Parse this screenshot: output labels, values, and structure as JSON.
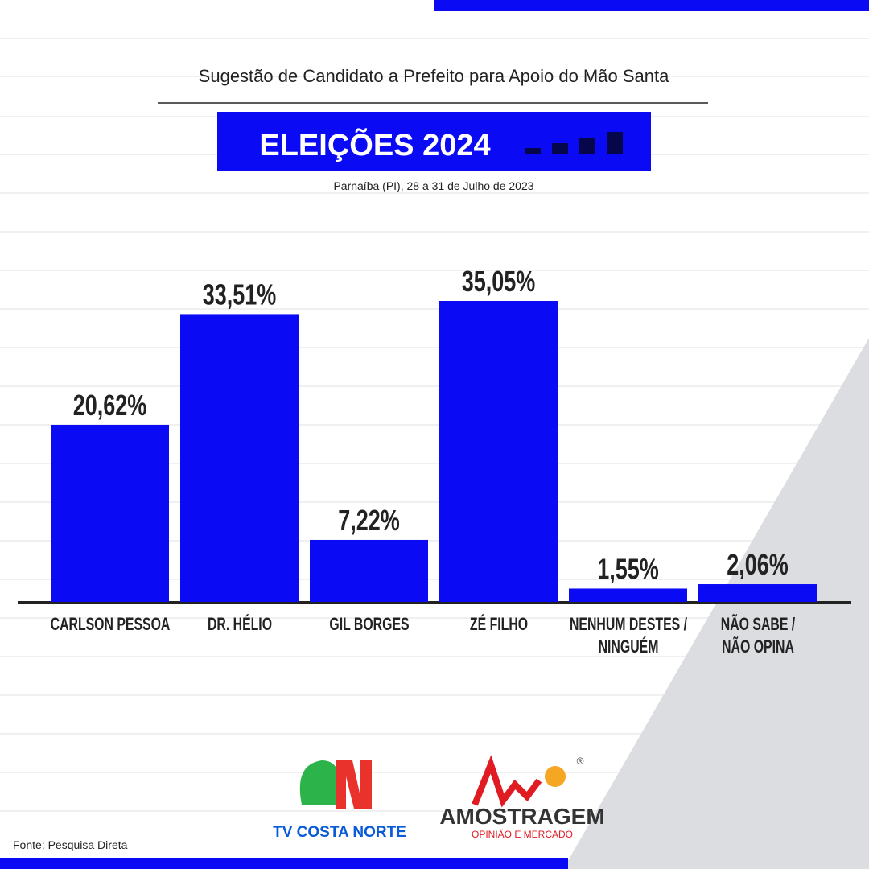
{
  "chart_data": {
    "type": "bar",
    "title": "Sugestão de Candidato a Prefeito para Apoio do Mão Santa",
    "banner": "ELEIÇÕES 2024",
    "subtitle": "Parnaíba (PI), 28 a 31 de Julho de 2023",
    "categories": [
      "CARLSON PESSOA",
      "DR. HÉLIO",
      "GIL BORGES",
      "ZÉ FILHO",
      "NENHUM DESTES /\nNINGUÉM",
      "NÃO SABE /\nNÃO OPINA"
    ],
    "values": [
      20.62,
      33.51,
      7.22,
      35.05,
      1.55,
      2.06
    ],
    "value_labels": [
      "20,62%",
      "33,51%",
      "7,22%",
      "35,05%",
      "1,55%",
      "2,06%"
    ],
    "color": "#0a0af5",
    "source": "Fonte: Pesquisa Direta"
  },
  "logos": {
    "tv": "TV COSTA NORTE",
    "amostragem": "AMOSTRAGEM",
    "tagline": "OPINIÃO E MERCADO",
    "registered": "®"
  }
}
